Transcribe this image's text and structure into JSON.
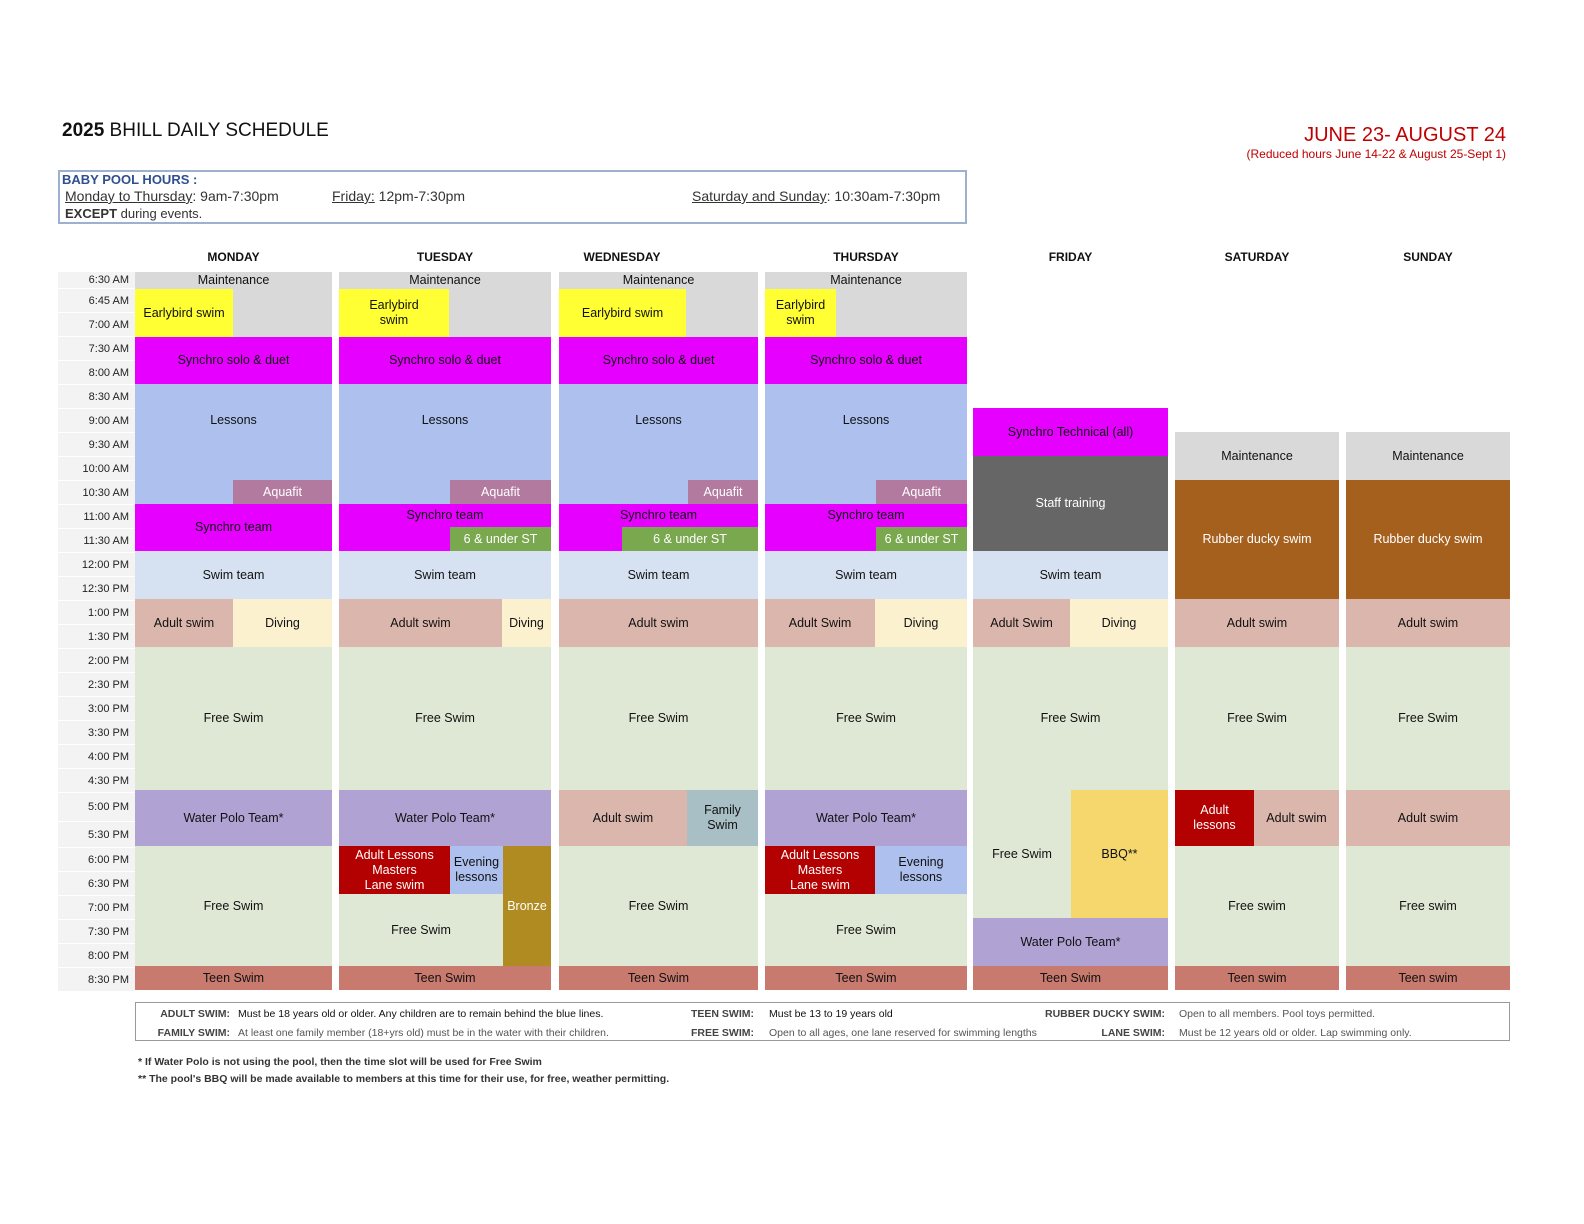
{
  "header": {
    "title_bold": "2025",
    "title_rest": " BHILL DAILY SCHEDULE",
    "date_range": "JUNE 23- AUGUST 24",
    "date_note": "(Reduced hours June 14-22 & August 25-Sept 1)"
  },
  "baby_pool": {
    "title": "BABY POOL HOURS :",
    "mon_thu_label": "Monday to Thursday",
    "mon_thu_hours": ":  9am-7:30pm",
    "fri_label": "Friday:",
    "fri_hours": " 12pm-7:30pm",
    "weekend_label": "Saturday and Sunday",
    "weekend_hours": ": 10:30am-7:30pm",
    "except_bold": "EXCEPT",
    "except_rest": " during events."
  },
  "days": [
    "MONDAY",
    "TUESDAY",
    "WEDNESDAY",
    "THURSDAY",
    "FRIDAY",
    "SATURDAY",
    "SUNDAY"
  ],
  "times": [
    "6:30 AM",
    "6:45 AM",
    "7:00 AM",
    "7:30 AM",
    "8:00 AM",
    "8:30 AM",
    "9:00 AM",
    "9:30 AM",
    "10:00 AM",
    "10:30 AM",
    "11:00 AM",
    "11:30 AM",
    "12:00 PM",
    "12:30 PM",
    "1:00 PM",
    "1:30 PM",
    "2:00 PM",
    "2:30 PM",
    "3:00 PM",
    "3:30 PM",
    "4:00 PM",
    "4:30 PM",
    "5:00 PM",
    "5:30 PM",
    "6:00 PM",
    "6:30 PM",
    "7:00 PM",
    "7:30 PM",
    "8:00 PM",
    "8:30 PM"
  ],
  "activities": {
    "maintenance": "Maintenance",
    "earlybird": "Earlybird swim",
    "earlybird_wrapped": "Earlybird\nswim",
    "synchro_solo": "Synchro solo & duet",
    "lessons": "Lessons",
    "aquafit": "Aquafit",
    "synchro_team": "Synchro team",
    "six_under": "6 & under ST",
    "swim_team": "Swim team",
    "swim_team_fri": "Swim team",
    "adult_swim": "Adult swim",
    "adult_swim_cap": "Adult Swim",
    "diving": "Diving",
    "free_swim": "Free Swim",
    "free_swim_lower": "Free swim",
    "water_polo": "Water Polo Team*",
    "adult_lessons_masters": "Adult Lessons\nMasters\nLane swim",
    "evening_lessons": "Evening\nlessons",
    "bronze": "Bronze",
    "family_swim": "Family\nSwim",
    "teen_swim": "Teen Swim",
    "teen_swim_lower": "Teen swim",
    "synchro_technical": "Synchro Technical (all)",
    "staff_training": "Staff training",
    "rubber_ducky": "Rubber ducky swim",
    "bbq": "BBQ**",
    "adult_lessons": "Adult\nlessons"
  },
  "legend": {
    "adult_key": "ADULT SWIM:",
    "adult_val": "Must be 18 years old or older. Any children are to remain behind the blue lines.",
    "family_key": "FAMILY SWIM:",
    "family_val": "At least one family member (18+yrs old) must be in the water with their children.",
    "teen_key": "TEEN SWIM:",
    "teen_val": "Must be 13 to 19 years old",
    "free_key": "FREE SWIM:",
    "free_val": "Open to all ages, one lane reserved for swimming lengths",
    "ducky_key": "RUBBER DUCKY SWIM:",
    "ducky_val": "Open to all members. Pool toys permitted.",
    "lane_key": "LANE SWIM:",
    "lane_val": "Must be 12 years old or older. Lap swimming only."
  },
  "footnotes": {
    "note1": "* If Water Polo is not using the pool, then the time slot will be used for Free Swim",
    "note2": "** The pool's BBQ will be made available to members at this time for their use, for free, weather permitting."
  },
  "colors": {
    "maintenance": "#d9d9d9",
    "earlybird": "#ffff33",
    "synchro": "#e600ff",
    "lessons": "#adc0ee",
    "aquafit": "#b37aa0",
    "six_under": "#79a84f",
    "swim_team": "#d6e2f2",
    "adult_swim": "#dbb6ad",
    "diving": "#fbf1cf",
    "free_swim": "#dfe8d4",
    "water_polo": "#b0a3d4",
    "adult_lessons": "#b30000",
    "bronze": "#b08b22",
    "family_swim": "#a9bfc6",
    "teen_swim": "#c97a6e",
    "staff_training": "#666666",
    "rubber_ducky": "#a5601e",
    "bbq": "#f5d76e",
    "date_red": "#c00000"
  }
}
